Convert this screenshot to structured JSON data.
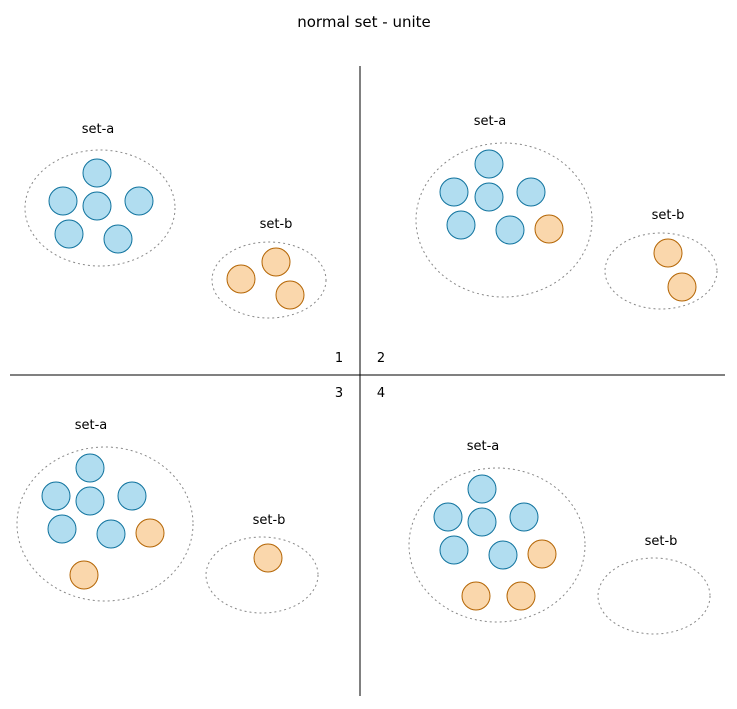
{
  "title": "normal set - unite",
  "colors": {
    "blue_fill": "#b1ddf0",
    "blue_stroke": "#10739e",
    "orange_fill": "#fad7ac",
    "orange_stroke": "#b46504",
    "divider": "#000000",
    "set_outline": "#888888"
  },
  "quadrants": [
    {
      "number": "1",
      "set_a": {
        "label": "set-a",
        "elements": [
          "blue",
          "blue",
          "blue",
          "blue",
          "blue",
          "blue"
        ]
      },
      "set_b": {
        "label": "set-b",
        "elements": [
          "orange",
          "orange",
          "orange"
        ]
      }
    },
    {
      "number": "2",
      "set_a": {
        "label": "set-a",
        "elements": [
          "blue",
          "blue",
          "blue",
          "blue",
          "blue",
          "blue",
          "orange"
        ]
      },
      "set_b": {
        "label": "set-b",
        "elements": [
          "orange",
          "orange"
        ]
      }
    },
    {
      "number": "3",
      "set_a": {
        "label": "set-a",
        "elements": [
          "blue",
          "blue",
          "blue",
          "blue",
          "blue",
          "blue",
          "orange",
          "orange"
        ]
      },
      "set_b": {
        "label": "set-b",
        "elements": [
          "orange"
        ]
      }
    },
    {
      "number": "4",
      "set_a": {
        "label": "set-a",
        "elements": [
          "blue",
          "blue",
          "blue",
          "blue",
          "blue",
          "blue",
          "orange",
          "orange",
          "orange"
        ]
      },
      "set_b": {
        "label": "set-b",
        "elements": []
      }
    }
  ]
}
